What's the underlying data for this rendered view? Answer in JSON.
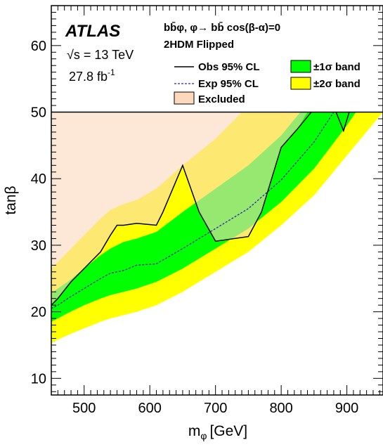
{
  "chart_data": {
    "type": "area",
    "xlabel_main": "m",
    "xlabel_sub": "φ",
    "xlabel_unit": "[GeV]",
    "ylabel": "tanβ",
    "xlim": [
      450,
      955
    ],
    "ylim": [
      7.5,
      66
    ],
    "x_ticks": [
      500,
      600,
      700,
      800,
      900
    ],
    "y_ticks": [
      10,
      20,
      30,
      40,
      50,
      60
    ],
    "grid": false,
    "plot_upper_limit": 50,
    "x": [
      450,
      460,
      475,
      500,
      525,
      540,
      560,
      580,
      610,
      650,
      700,
      750,
      800,
      850,
      900,
      955
    ],
    "exp": [
      20.5,
      21.0,
      22.0,
      23.5,
      25.0,
      25.8,
      26.2,
      27.0,
      27.2,
      29.5,
      32.5,
      35.5,
      39.8,
      45.5,
      53.0,
      62.0
    ],
    "band_1sigma_low": [
      18.5,
      19.0,
      19.8,
      21.0,
      22.0,
      22.5,
      23.0,
      23.5,
      24.5,
      26.5,
      29.5,
      32.5,
      36.5,
      41.5,
      48.0,
      56.0
    ],
    "band_1sigma_high": [
      22.8,
      23.5,
      24.5,
      26.5,
      28.5,
      29.5,
      30.5,
      31.0,
      32.0,
      35.0,
      38.5,
      42.0,
      46.5,
      52.5,
      60.0,
      68.0
    ],
    "band_2sigma_low": [
      15.3,
      15.8,
      16.5,
      17.5,
      18.5,
      19.0,
      19.5,
      20.0,
      21.0,
      23.0,
      26.0,
      29.0,
      33.0,
      37.5,
      43.5,
      50.0
    ],
    "band_2sigma_high": [
      26.5,
      27.5,
      29.0,
      31.5,
      34.0,
      35.3,
      36.2,
      36.8,
      38.5,
      42.0,
      46.0,
      51.0,
      57.0,
      64.0,
      72.0,
      80.0
    ],
    "obs": {
      "x": [
        450,
        460,
        480,
        500,
        525,
        540,
        550,
        560,
        580,
        610,
        620,
        650,
        675,
        700,
        750,
        770,
        800,
        825,
        850,
        865,
        895,
        905,
        910,
        925
      ],
      "y": [
        21.0,
        22.0,
        24.5,
        26.5,
        29.0,
        31.5,
        33.0,
        33.0,
        33.3,
        33.0,
        35.0,
        42.0,
        35.0,
        30.6,
        31.3,
        35.0,
        44.7,
        47.5,
        50.5,
        54.5,
        47.2,
        50.5,
        52.0,
        55.0
      ]
    },
    "excluded": {
      "boundary": [
        [
          450,
          21.0
        ],
        [
          460,
          22.0
        ],
        [
          480,
          24.5
        ],
        [
          500,
          26.5
        ],
        [
          525,
          29.0
        ],
        [
          540,
          31.5
        ],
        [
          550,
          33.0
        ],
        [
          560,
          33.0
        ],
        [
          580,
          33.3
        ],
        [
          610,
          33.0
        ],
        [
          620,
          35.0
        ],
        [
          650,
          42.0
        ],
        [
          675,
          35.0
        ],
        [
          700,
          30.6
        ],
        [
          750,
          31.3
        ],
        [
          770,
          35.0
        ],
        [
          800,
          44.7
        ],
        [
          825,
          47.5
        ],
        [
          840,
          50.0
        ],
        [
          900,
          50.0
        ],
        [
          905,
          50.5
        ],
        [
          910,
          52.0
        ]
      ]
    },
    "legend": {
      "placement": "top-right",
      "line1": "bb̄φ, φ→ bb̄  cos(β-α)=0",
      "line2": "2HDM Flipped",
      "obs_label": "Obs 95% CL",
      "exp_label": "Exp 95% CL",
      "excluded_label": "Excluded",
      "band1_label": "±1σ band",
      "band2_label": "±2σ band"
    },
    "annotations": {
      "experiment": "ATLAS",
      "energy": "√s = 13 TeV",
      "lumi_main": "27.8 fb",
      "lumi_sup": "-1"
    },
    "colors": {
      "band1": "#00ff00",
      "band2": "#ffff00",
      "excluded": "#fcd9bd",
      "obs_line": "#000000",
      "exp_line": "#2a2aa8"
    }
  }
}
